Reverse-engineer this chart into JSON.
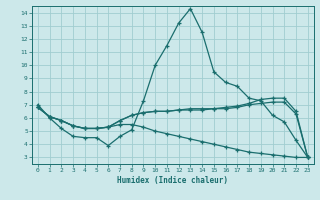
{
  "xlabel": "Humidex (Indice chaleur)",
  "xlim": [
    -0.5,
    23.5
  ],
  "ylim": [
    2.5,
    14.5
  ],
  "bg_color": "#cce8ea",
  "grid_color": "#a0cdd0",
  "line_color": "#1a6e6e",
  "line1_y": [
    7.0,
    6.0,
    5.2,
    4.6,
    4.5,
    4.5,
    3.9,
    4.6,
    5.1,
    7.3,
    10.0,
    11.5,
    13.2,
    14.3,
    12.5,
    9.5,
    8.7,
    8.4,
    7.5,
    7.3,
    6.2,
    5.7,
    4.3,
    3.0
  ],
  "line2_y": [
    6.8,
    6.1,
    5.8,
    5.4,
    5.2,
    5.2,
    5.3,
    5.8,
    6.2,
    6.4,
    6.5,
    6.5,
    6.6,
    6.7,
    6.7,
    6.7,
    6.8,
    6.9,
    7.1,
    7.4,
    7.5,
    7.5,
    6.5,
    3.0
  ],
  "line3_y": [
    6.8,
    6.1,
    5.8,
    5.4,
    5.2,
    5.2,
    5.3,
    5.8,
    6.2,
    6.4,
    6.5,
    6.5,
    6.6,
    6.6,
    6.6,
    6.7,
    6.7,
    6.8,
    7.0,
    7.1,
    7.2,
    7.2,
    6.3,
    3.0
  ],
  "line4_y": [
    6.8,
    6.1,
    5.8,
    5.4,
    5.2,
    5.2,
    5.3,
    5.5,
    5.5,
    5.3,
    5.0,
    4.8,
    4.6,
    4.4,
    4.2,
    4.0,
    3.8,
    3.6,
    3.4,
    3.3,
    3.2,
    3.1,
    3.0,
    3.0
  ],
  "xticks": [
    0,
    1,
    2,
    3,
    4,
    5,
    6,
    7,
    8,
    9,
    10,
    11,
    12,
    13,
    14,
    15,
    16,
    17,
    18,
    19,
    20,
    21,
    22,
    23
  ],
  "yticks": [
    3,
    4,
    5,
    6,
    7,
    8,
    9,
    10,
    11,
    12,
    13,
    14
  ]
}
